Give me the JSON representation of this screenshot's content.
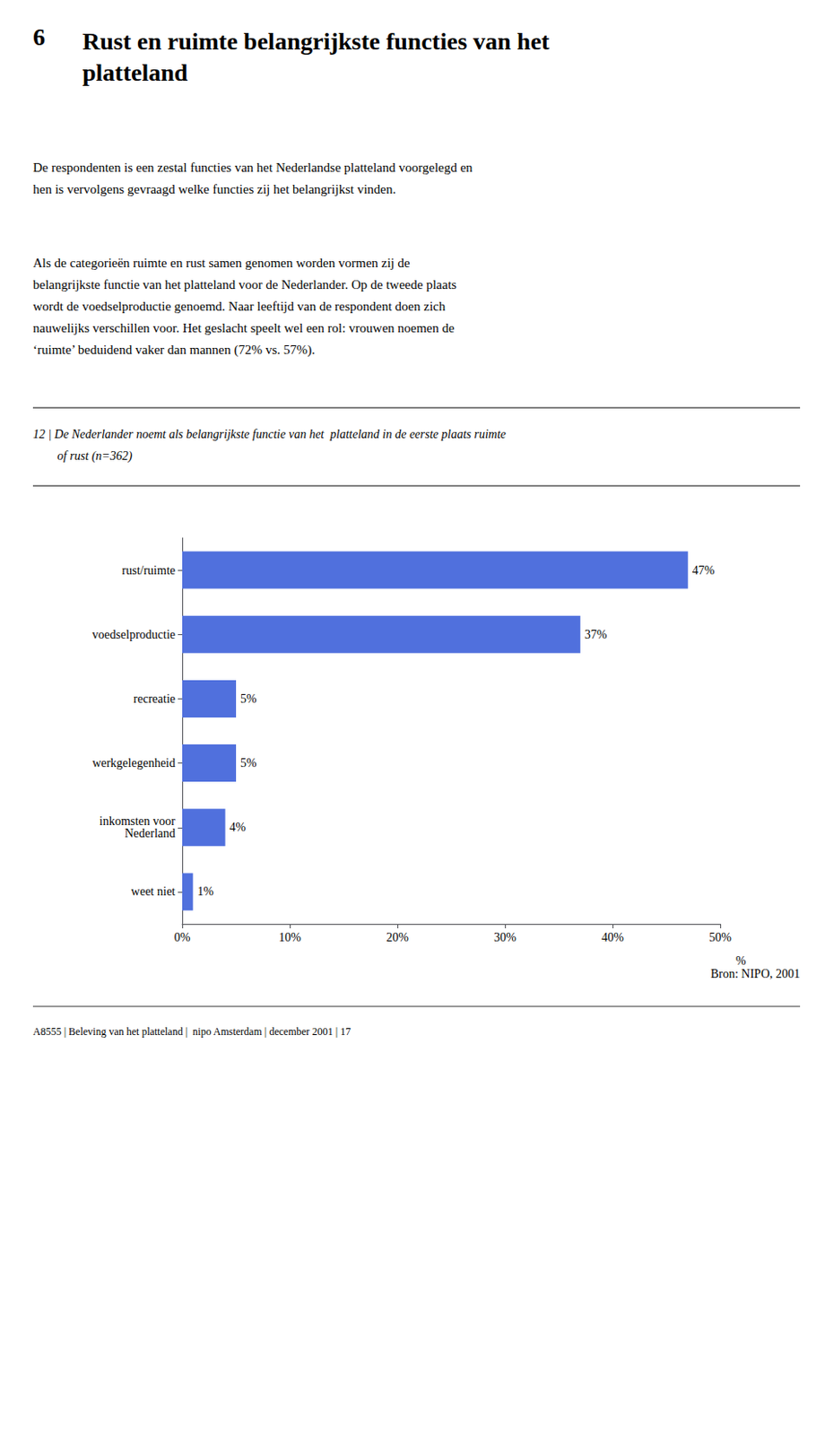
{
  "chart_data": {
    "type": "bar",
    "orientation": "horizontal",
    "title": "Rust en ruimte belangrijkste functies van het\nplatteland",
    "annotations": [
      "6",
      "De respondenten is een zestal functies van het Nederlandse platteland voorgelegd en\nhen is vervolgens gevraagd welke functies zij het belangrijkst vinden.",
      "Als de categorieën ruimte en rust samen genomen worden vormen zij de\nbelangrijkste functie van het platteland voor de Nederlander. Op de tweede plaats\nwordt de voedselproductie genoemd. Naar leeftijd van de respondent doen zich\nnauwelijks verschillen voor. Het geslacht speelt wel een rol: vrouwen noemen de\n‘ruimte’ beduidend vaker dan mannen (72% vs. 57%).",
      "12 | De Nederlander noemt als belangrijkste functie van het  platteland in de eerste plaats ruimte",
      "of rust (n=362)",
      "Bron: NIPO, 2001",
      "A8555 | Beleving van het platteland |  nipo Amsterdam | december 2001 | 17",
      "%"
    ],
    "categories": [
      "rust/ruimte",
      "voedselproductie",
      "recreatie",
      "werkgelegenheid",
      "inkomsten voor\nNederland",
      "weet niet"
    ],
    "values": [
      47,
      37,
      5,
      5,
      4,
      1
    ],
    "value_labels": [
      "47%",
      "37%",
      "5%",
      "5%",
      "4%",
      "1%"
    ],
    "data_labels": true,
    "xlim": [
      0,
      50
    ],
    "xticks": [
      {
        "value": 0,
        "label": "0%"
      },
      {
        "value": 10,
        "label": "10%"
      },
      {
        "value": 20,
        "label": "20%"
      },
      {
        "value": 30,
        "label": "30%"
      },
      {
        "value": 40,
        "label": "40%"
      },
      {
        "value": 50,
        "label": "50%"
      }
    ],
    "grid": false
  }
}
